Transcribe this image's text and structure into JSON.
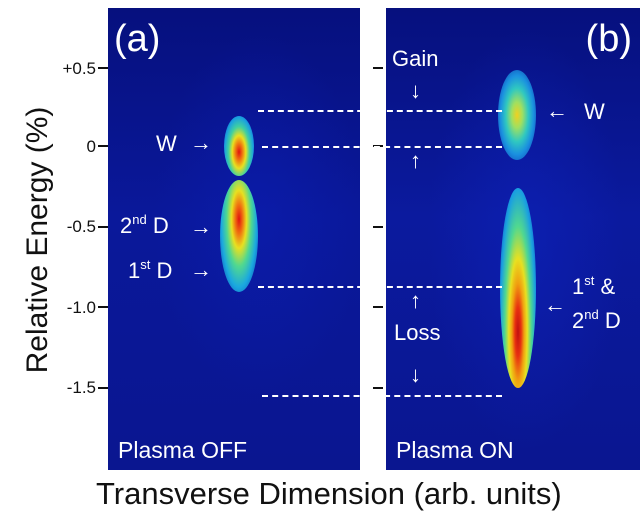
{
  "figure": {
    "y_axis_title": "Relative Energy (%)",
    "x_axis_title": "Transverse Dimension (arb. units)",
    "y_ticks": [
      "+0.5",
      "0",
      "-0.5",
      "-1.0",
      "-1.5"
    ]
  },
  "panel_a": {
    "letter": "(a)",
    "status": "Plasma OFF",
    "labels": {
      "w": "W",
      "second_d_base": "2",
      "second_d_sup": "nd",
      "second_d_tail": " D",
      "first_d_base": "1",
      "first_d_sup": "st",
      "first_d_tail": " D"
    }
  },
  "panel_b": {
    "letter": "(b)",
    "status": "Plasma ON",
    "labels": {
      "w": "W",
      "first_base": "1",
      "first_sup": "st",
      "first_tail": " &",
      "second_base": "2",
      "second_sup": "nd",
      "second_tail": " D"
    }
  },
  "annotations": {
    "gain": "Gain",
    "loss": "Loss"
  },
  "colors": {
    "background": "#0a1690",
    "beam_core": "#e81010",
    "beam_mid": "#f0e020",
    "beam_halo": "#20c8e8"
  },
  "icons": {
    "arrow_right": "→",
    "arrow_left": "←",
    "arrow_down": "↓",
    "arrow_up": "↑"
  }
}
